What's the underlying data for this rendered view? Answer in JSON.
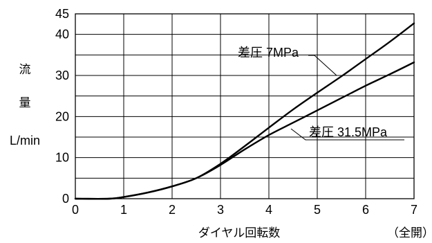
{
  "chart_data": {
    "type": "line",
    "ylabel_chars": [
      "流",
      "量"
    ],
    "yunit": "L/min",
    "xlabel": "ダイヤル回転数",
    "xnote": "（全開）",
    "xlim": [
      0,
      7
    ],
    "ylim": [
      0,
      45
    ],
    "x_ticks": [
      0,
      1,
      2,
      3,
      4,
      5,
      6,
      7
    ],
    "y_ticks": [
      0,
      10,
      20,
      30,
      40,
      45
    ],
    "grid": true,
    "series": [
      {
        "name": "差圧 7MPa",
        "x": [
          0,
          0.7,
          1,
          1.5,
          2,
          2.5,
          3,
          3.5,
          4,
          4.5,
          5,
          5.5,
          6,
          6.5,
          7
        ],
        "values": [
          0,
          0,
          0.4,
          1.5,
          3,
          5,
          8.5,
          12.8,
          17.3,
          21.7,
          25.8,
          29.8,
          34,
          38.2,
          42.7
        ]
      },
      {
        "name": "差圧 31.5MPa",
        "x": [
          0,
          0.7,
          1,
          1.5,
          2,
          2.5,
          3,
          3.5,
          4,
          4.5,
          5,
          5.5,
          6,
          6.5,
          7
        ],
        "values": [
          0,
          0,
          0.4,
          1.5,
          3,
          5,
          8.2,
          12,
          15.5,
          18.5,
          21.5,
          24.5,
          27.5,
          30.3,
          33.2
        ]
      }
    ],
    "annotations": [
      "差圧 7MPa",
      "差圧 31.5MPa"
    ]
  }
}
